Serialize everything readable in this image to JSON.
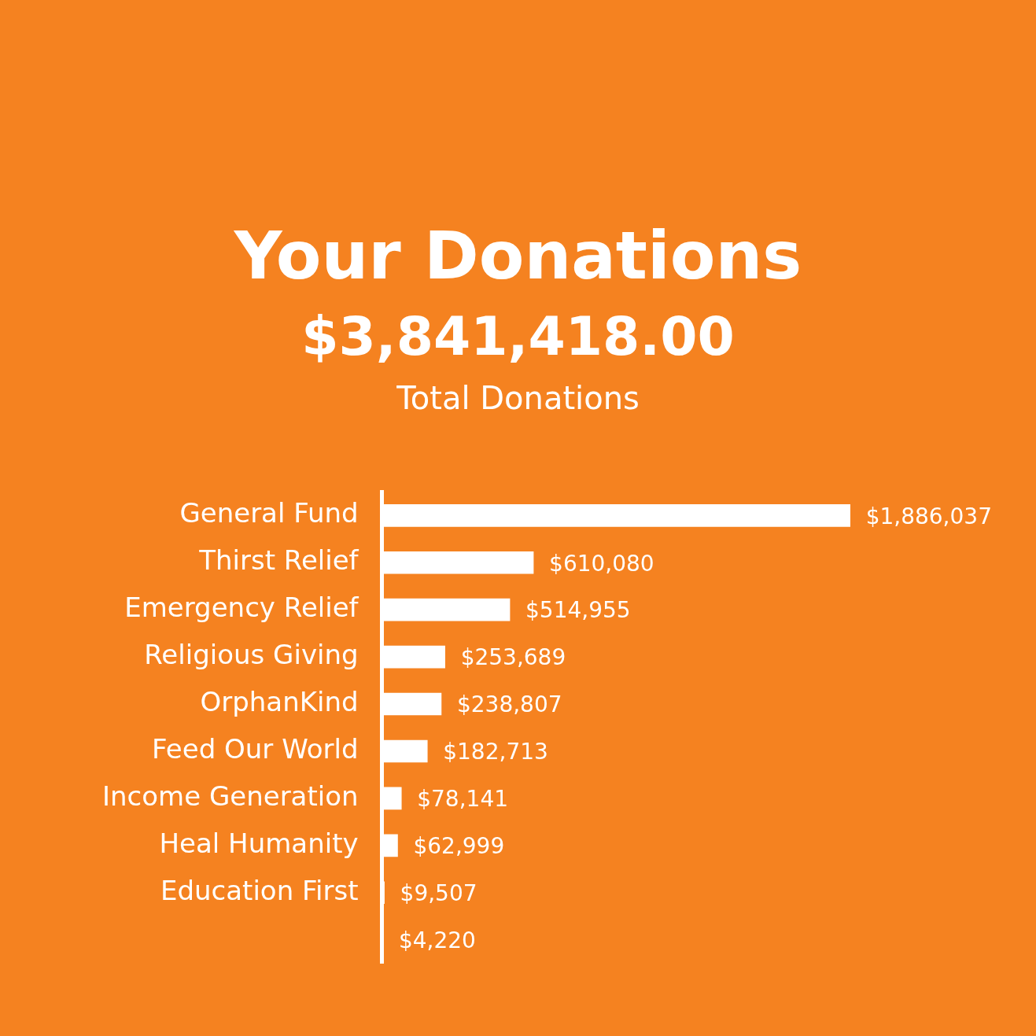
{
  "chart_data": {
    "type": "bar",
    "orientation": "horizontal",
    "title": "Your Donations",
    "subtitle": "$3,841,418.00",
    "annotations": [
      "Total Donations"
    ],
    "categories": [
      "General Fund",
      "Thirst Relief",
      "Emergency Relief",
      "Religious Giving",
      "OrphanKind",
      "Feed Our World",
      "Income Generation",
      "Heal Humanity",
      "Education First",
      null
    ],
    "values": [
      1886037,
      610080,
      514955,
      253689,
      238807,
      182713,
      78141,
      62999,
      9507,
      4220
    ],
    "value_labels": [
      "$1,886,037",
      "$610,080",
      "$514,955",
      "$253,689",
      "$238,807",
      "$182,713",
      "$78,141",
      "$62,999",
      "$9,507",
      "$4,220"
    ],
    "color": "#ffffff",
    "grid": false,
    "legend": false,
    "tick_labels": "y"
  }
}
